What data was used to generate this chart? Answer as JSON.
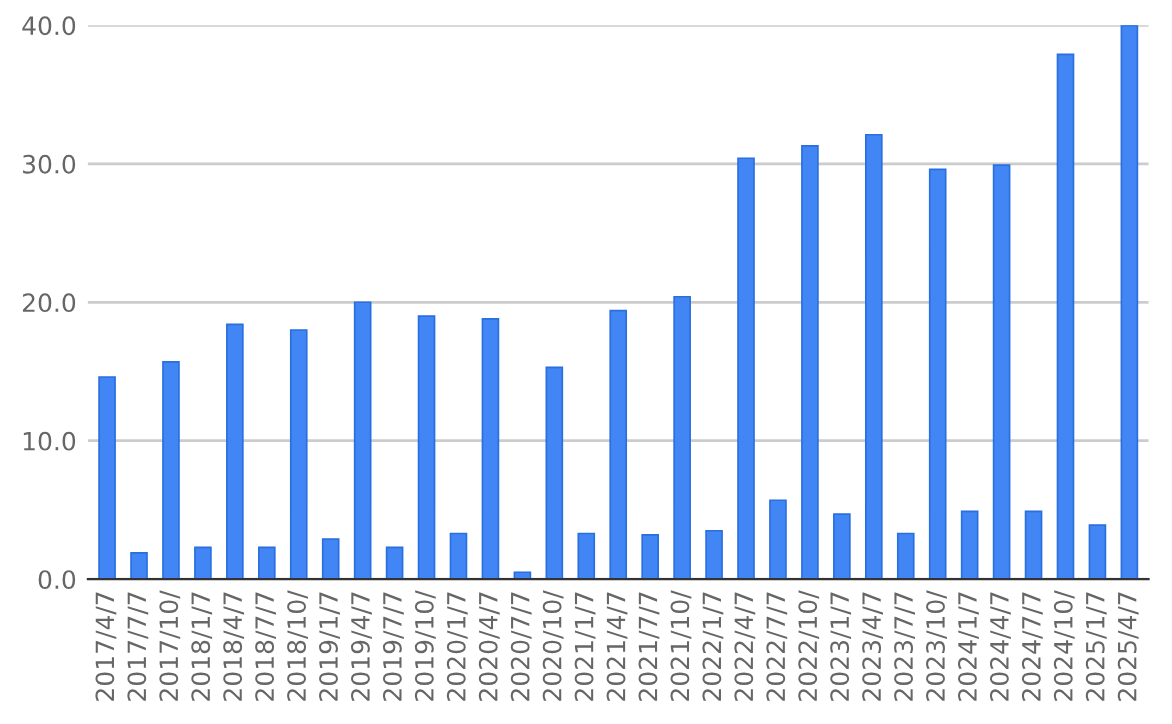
{
  "chart_data": {
    "type": "bar",
    "categories": [
      "2017/4/7",
      "2017/7/7",
      "2017/10/",
      "2018/1/7",
      "2018/4/7",
      "2018/7/7",
      "2018/10/",
      "2019/1/7",
      "2019/4/7",
      "2019/7/7",
      "2019/10/",
      "2020/1/7",
      "2020/4/7",
      "2020/7/7",
      "2020/10/",
      "2021/1/7",
      "2021/4/7",
      "2021/7/7",
      "2021/10/",
      "2022/1/7",
      "2022/4/7",
      "2022/7/7",
      "2022/10/",
      "2023/1/7",
      "2023/4/7",
      "2023/7/7",
      "2023/10/",
      "2024/1/7",
      "2024/4/7",
      "2024/7/7",
      "2024/10/",
      "2025/1/7",
      "2025/4/7"
    ],
    "values": [
      14.6,
      1.9,
      15.7,
      2.3,
      18.4,
      2.3,
      18.0,
      2.9,
      20.0,
      2.3,
      19.0,
      3.3,
      18.8,
      0.5,
      15.3,
      3.3,
      19.4,
      3.2,
      20.4,
      3.5,
      30.4,
      5.7,
      31.3,
      4.7,
      32.1,
      3.3,
      29.6,
      4.9,
      29.9,
      4.9,
      37.9,
      3.9,
      40.0
    ],
    "color": "#4285f4",
    "ylim": [
      0,
      40
    ],
    "yticks": [
      {
        "value": 0,
        "label": "0.0"
      },
      {
        "value": 10,
        "label": "10.0"
      },
      {
        "value": 20,
        "label": "20.0"
      },
      {
        "value": 30,
        "label": "30.0"
      },
      {
        "value": 40,
        "label": "40.0"
      }
    ],
    "grid": "y"
  }
}
